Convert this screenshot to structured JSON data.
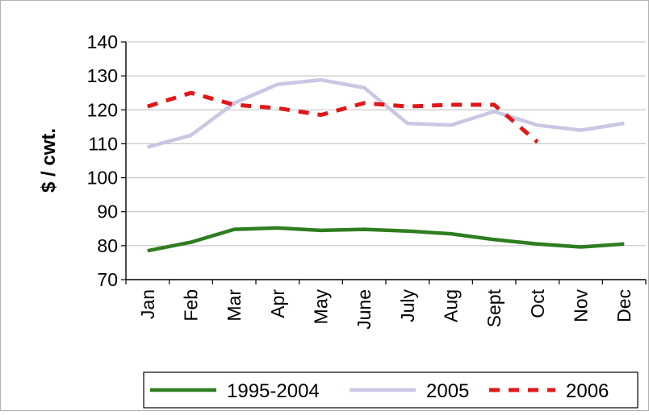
{
  "chart_data": {
    "type": "line",
    "categories": [
      "Jan",
      "Feb",
      "Mar",
      "Apr",
      "May",
      "June",
      "July",
      "Aug",
      "Sept",
      "Oct",
      "Nov",
      "Dec"
    ],
    "ylabel": "$ / cwt.",
    "xlabel": "",
    "title": "",
    "ylim": [
      70,
      140
    ],
    "yticks": [
      70,
      80,
      90,
      100,
      110,
      120,
      130,
      140
    ],
    "grid": true,
    "legend_position": "bottom",
    "series": [
      {
        "name": "1995-2004",
        "color": "#2e7d1f",
        "style": "solid",
        "values": [
          78.5,
          81,
          84.8,
          85.2,
          84.5,
          84.8,
          84.3,
          83.5,
          81.8,
          80.5,
          79.6,
          80.5
        ]
      },
      {
        "name": "2005",
        "color": "#c8c8e4",
        "style": "solid",
        "values": [
          109,
          112.5,
          122,
          127.5,
          128.8,
          126.5,
          116,
          115.5,
          119.5,
          115.5,
          114,
          116
        ]
      },
      {
        "name": "2006",
        "color": "#e01818",
        "style": "dashed",
        "values": [
          121,
          125,
          121.5,
          120.5,
          118.5,
          122,
          121,
          121.5,
          121.5,
          110.5,
          null,
          null
        ]
      }
    ]
  }
}
